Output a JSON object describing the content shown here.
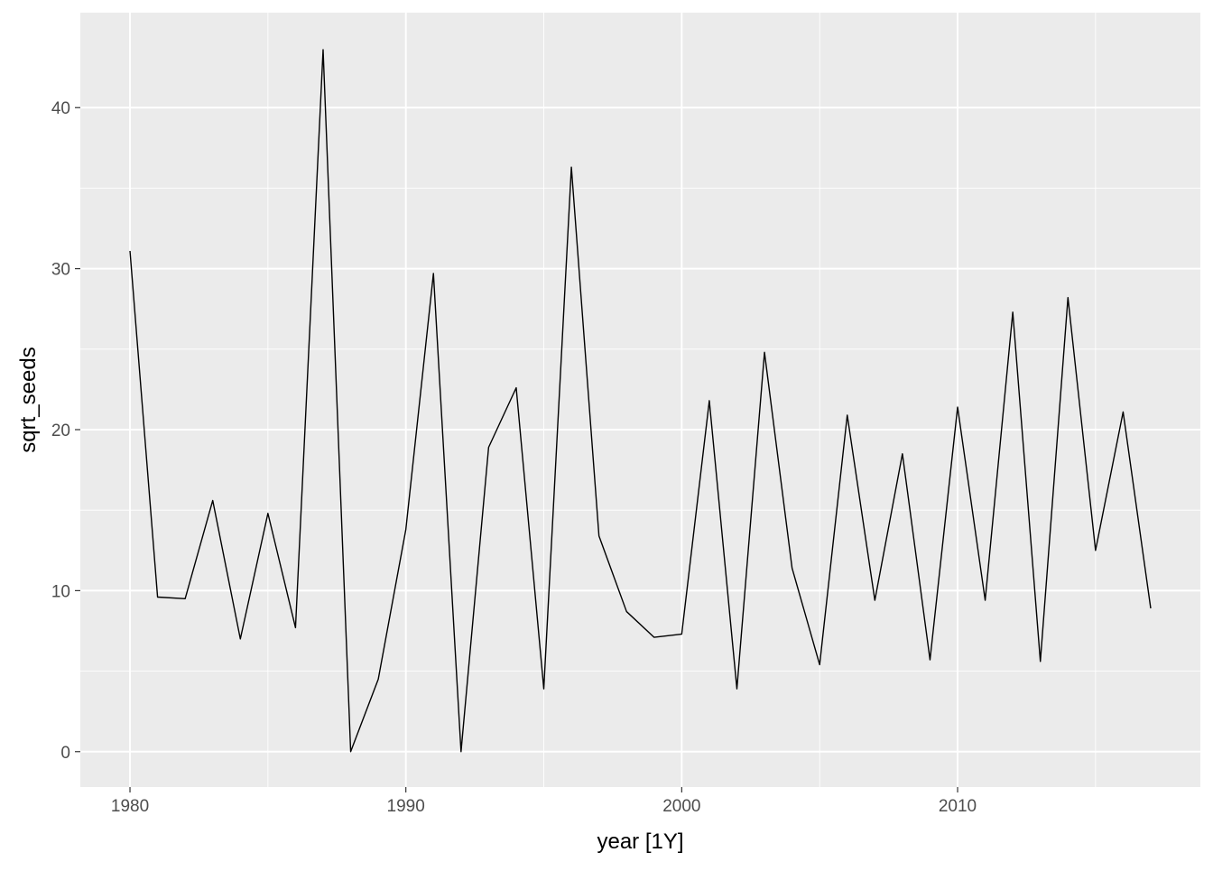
{
  "chart_data": {
    "type": "line",
    "title": "",
    "xlabel": "year [1Y]",
    "ylabel": "sqrt_seeds",
    "xlim": [
      1978.2,
      2018.8
    ],
    "ylim": [
      -2.2,
      45.9
    ],
    "x_ticks": [
      1980,
      1990,
      2000,
      2010
    ],
    "x_tick_labels": [
      "1980",
      "1990",
      "2000",
      "2010"
    ],
    "y_ticks": [
      0,
      10,
      20,
      30,
      40
    ],
    "y_tick_labels": [
      "0",
      "10",
      "20",
      "30",
      "40"
    ],
    "grid": true,
    "legend": "none",
    "colors": {
      "panel_background": "#ebebeb",
      "grid": "#ffffff",
      "line": "#000000",
      "tick_text": "#4d4d4d",
      "tick_mark": "#333333"
    },
    "series": [
      {
        "x": [
          1980,
          1981,
          1982,
          1983,
          1984,
          1985,
          1986,
          1987,
          1988,
          1989,
          1990,
          1991,
          1992,
          1993,
          1994,
          1995,
          1996,
          1997,
          1998,
          1999,
          2000,
          2001,
          2002,
          2003,
          2004,
          2005,
          2006,
          2007,
          2008,
          2009,
          2010,
          2011,
          2012,
          2013,
          2014,
          2015,
          2016,
          2017
        ],
        "values": [
          31.1,
          9.6,
          9.5,
          15.6,
          7.0,
          14.8,
          7.7,
          43.6,
          0.0,
          4.5,
          13.8,
          29.7,
          0.0,
          18.9,
          22.6,
          3.9,
          36.3,
          13.4,
          8.7,
          7.1,
          7.3,
          21.8,
          3.9,
          24.8,
          11.4,
          5.4,
          20.9,
          9.4,
          18.5,
          5.7,
          21.4,
          9.4,
          27.3,
          5.6,
          28.2,
          12.5,
          21.1,
          8.9
        ]
      }
    ]
  }
}
